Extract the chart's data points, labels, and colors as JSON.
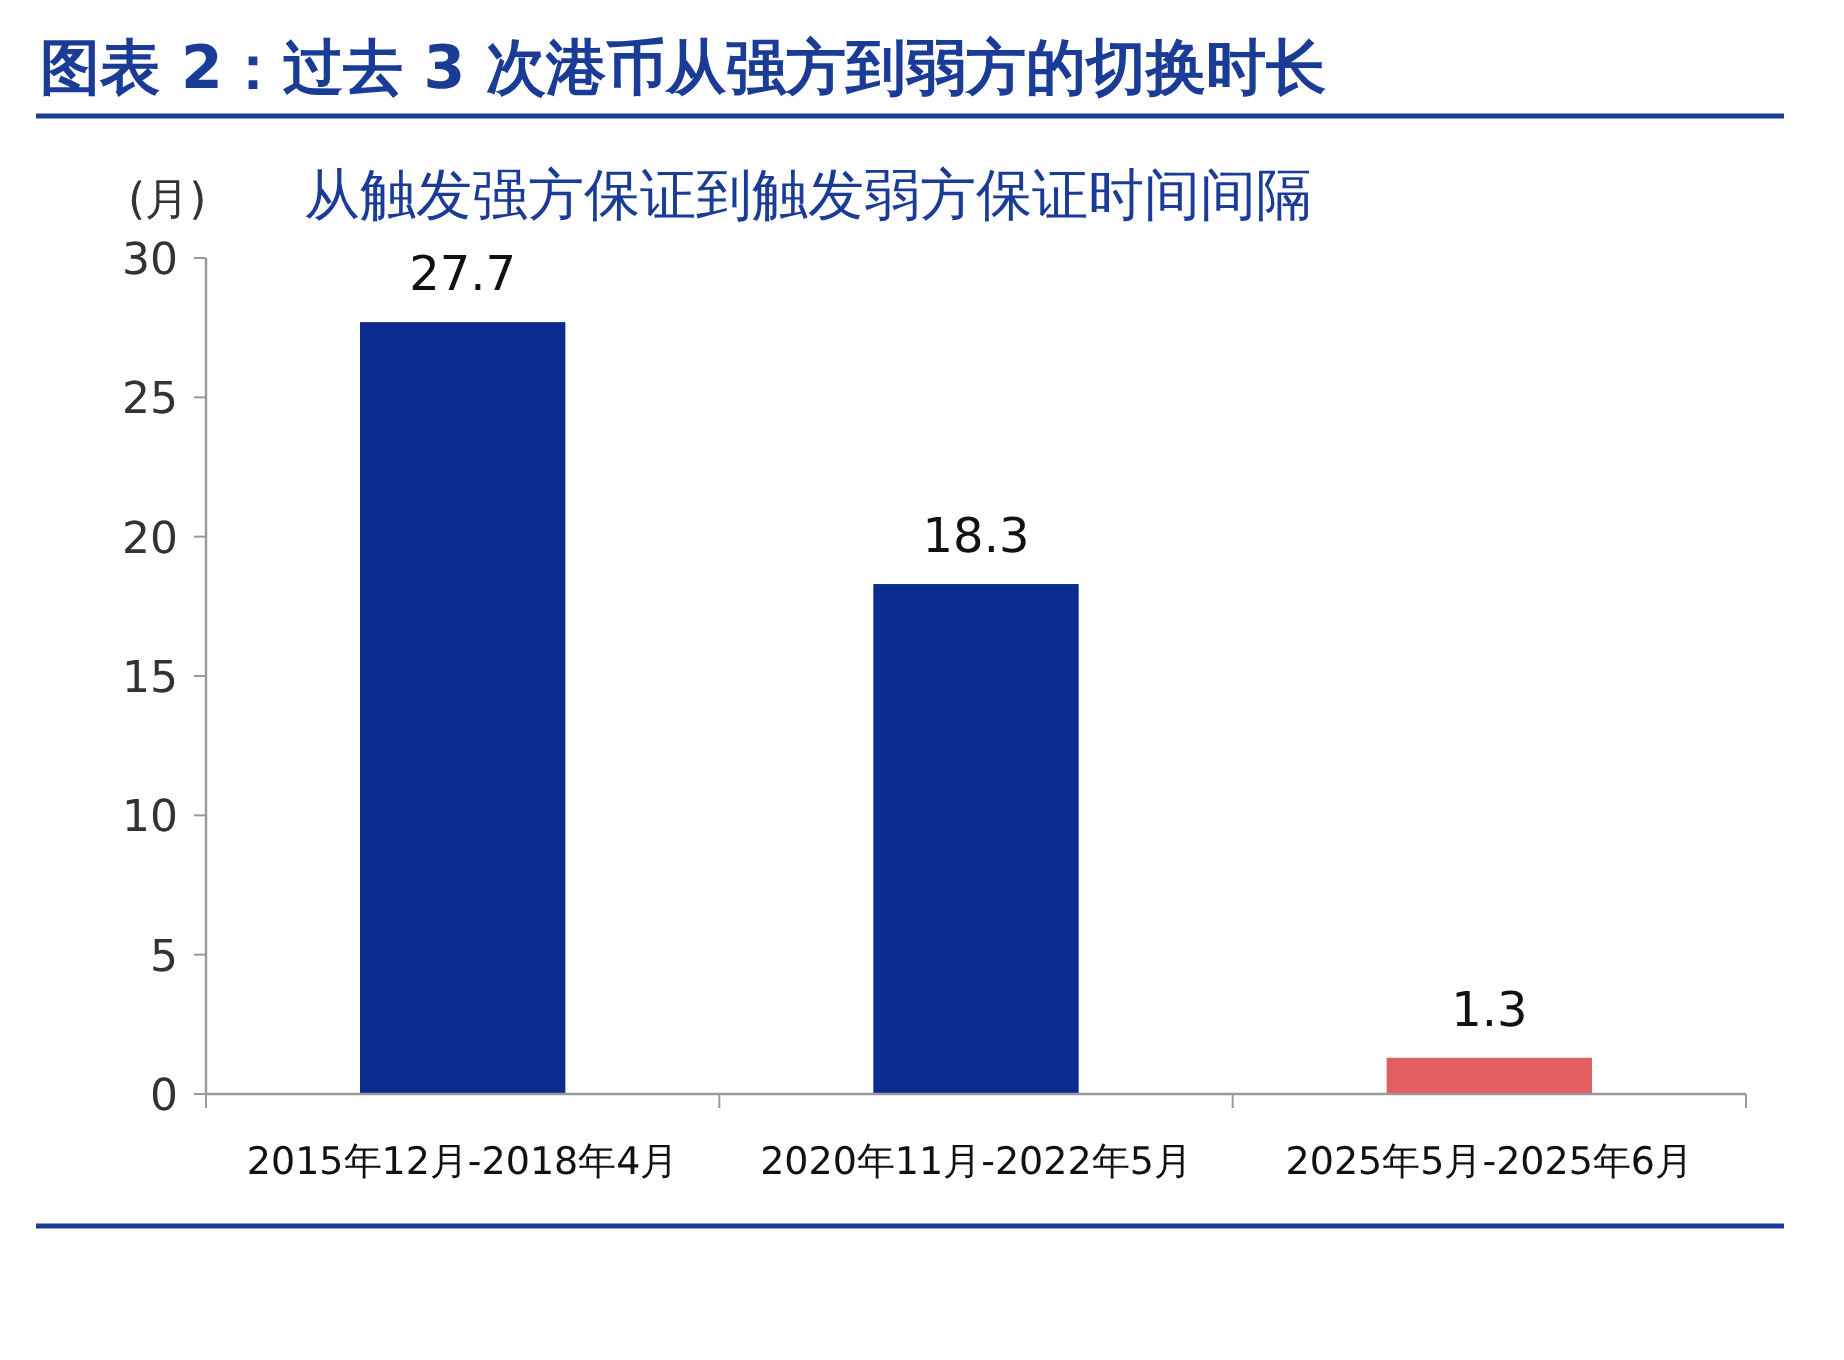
{
  "chart_data": {
    "type": "bar",
    "title": "图表 2：过去 3 次港币从强方到弱方的切换时长",
    "subtitle": "从触发强方保证到触发弱方保证时间间隔",
    "ylabel": "(月)",
    "categories": [
      "2015年12月-2018年4月",
      "2020年11月-2022年5月",
      "2025年5月-2025年6月"
    ],
    "values": [
      27.7,
      18.3,
      1.3
    ],
    "colors": [
      "#0b2b8f",
      "#0b2b8f",
      "#e35f5f"
    ],
    "ylim": [
      0,
      30
    ],
    "yticks": [
      0,
      5,
      10,
      15,
      20,
      25,
      30
    ],
    "data_labels": true
  }
}
